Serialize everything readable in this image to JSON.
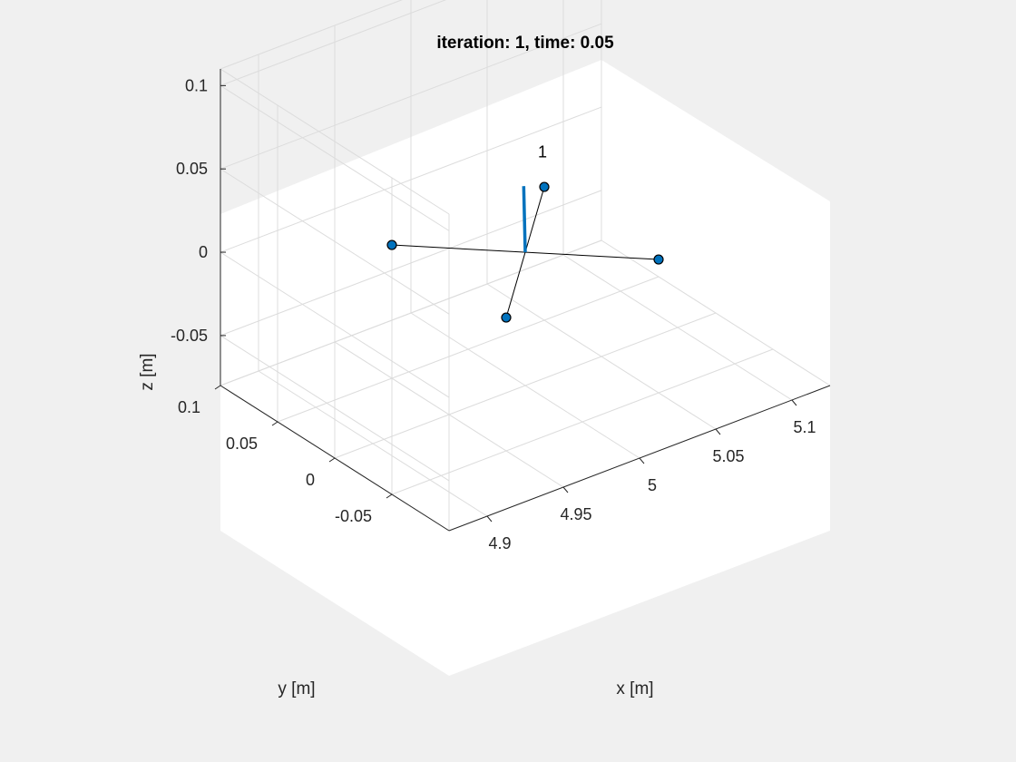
{
  "chart_data": {
    "type": "scatter",
    "title": "iteration: 1, time: 0.05",
    "xlabel": "x [m]",
    "ylabel": "y [m]",
    "zlabel": "z [m]",
    "xlim": [
      4.875,
      5.125
    ],
    "ylim": [
      -0.1,
      0.1
    ],
    "zlim": [
      -0.08,
      0.11
    ],
    "x_ticks": [
      "4.9",
      "4.95",
      "5",
      "5.05",
      "5.1"
    ],
    "y_ticks": [
      "-0.05",
      "0",
      "0.05",
      "0.1"
    ],
    "z_ticks": [
      "-0.05",
      "0",
      "0.05",
      "0.1"
    ],
    "grid": true,
    "view": "3d",
    "drone": {
      "label": "1",
      "center": [
        5.0,
        0.0,
        0.0
      ],
      "rotors": [
        [
          5.05,
          -0.05,
          0.0
        ],
        [
          4.95,
          0.05,
          0.0
        ],
        [
          5.05,
          0.05,
          0.0
        ],
        [
          4.95,
          -0.05,
          0.0
        ]
      ],
      "heading_length": 0.04
    },
    "colors": {
      "marker": "#0072bd",
      "arm": "#000000",
      "background": "#f0f0f0"
    }
  }
}
